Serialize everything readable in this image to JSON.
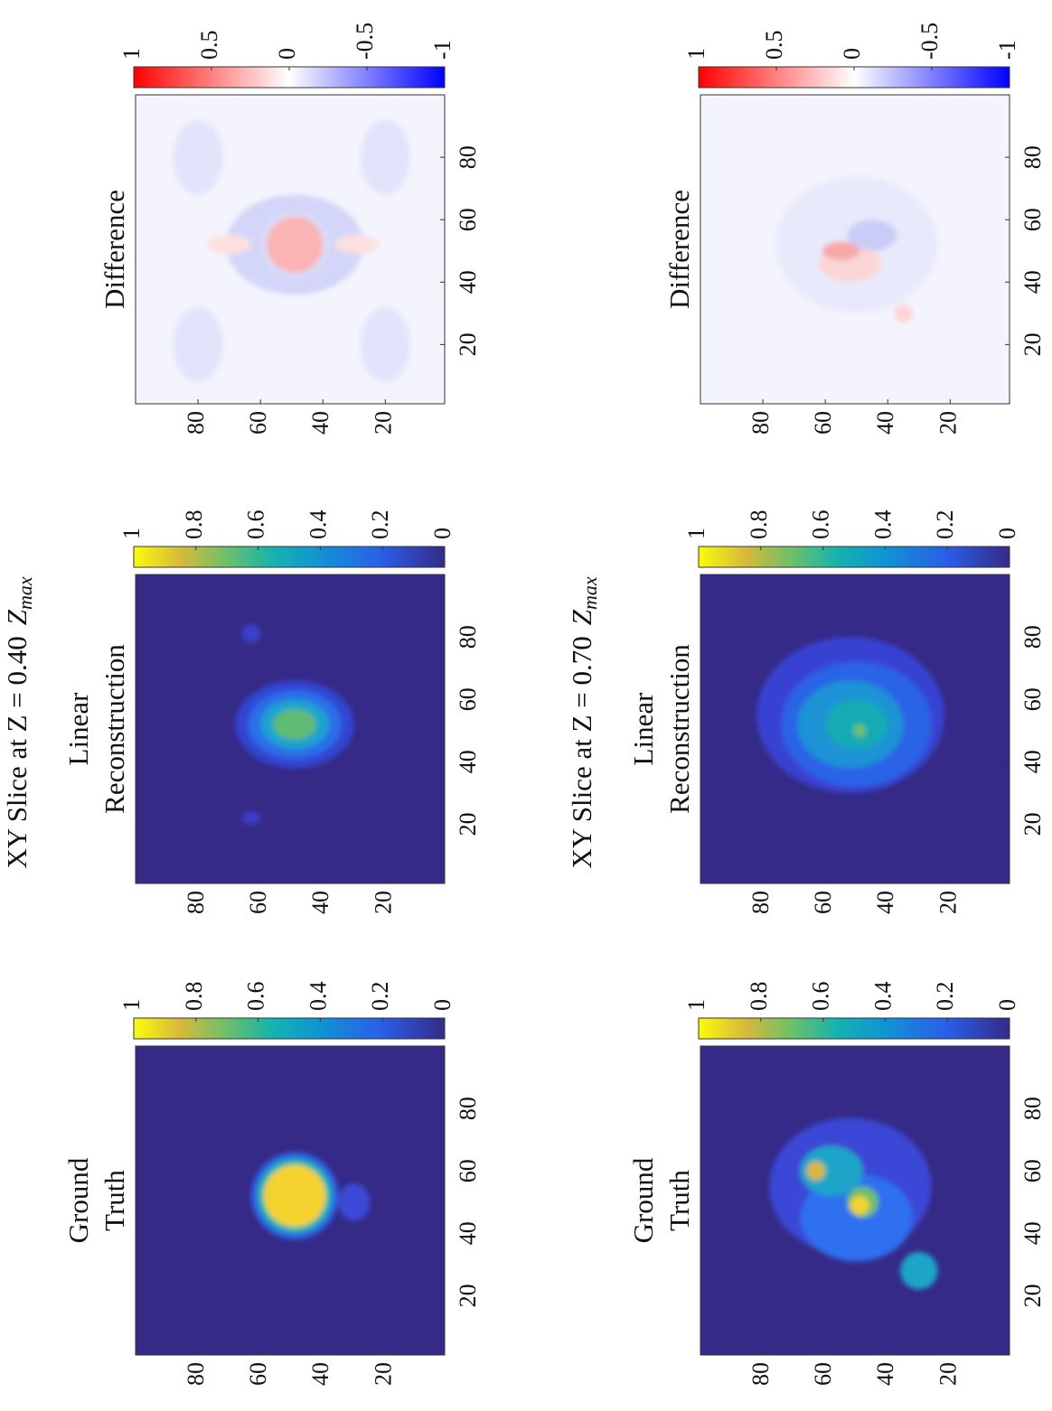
{
  "figure": {
    "rows": [
      {
        "title": "XY Slice at Z = 0.40",
        "symbol": "Z",
        "subscript": "max"
      },
      {
        "title": "XY Slice at Z = 0.70",
        "symbol": "Z",
        "subscript": "max"
      }
    ]
  },
  "chart_data": [
    {
      "type": "heatmap",
      "title": [
        "Ground",
        "Truth"
      ],
      "colormap": "parula",
      "xlim": [
        1,
        100
      ],
      "ylim": [
        1,
        100
      ],
      "xticks": [
        20,
        40,
        60,
        80
      ],
      "yticks": [
        20,
        40,
        60,
        80
      ],
      "clim": [
        0,
        1
      ],
      "cticks": [
        0,
        0.2,
        0.4,
        0.6,
        0.8,
        1
      ]
    },
    {
      "type": "heatmap",
      "title": [
        "Linear",
        "Reconstruction"
      ],
      "colormap": "parula",
      "xlim": [
        1,
        100
      ],
      "ylim": [
        1,
        100
      ],
      "xticks": [
        20,
        40,
        60,
        80
      ],
      "yticks": [
        20,
        40,
        60,
        80
      ],
      "clim": [
        0,
        1
      ],
      "cticks": [
        0,
        0.2,
        0.4,
        0.6,
        0.8,
        1
      ]
    },
    {
      "type": "heatmap",
      "title": [
        "Difference"
      ],
      "colormap": "redblue",
      "xlim": [
        1,
        100
      ],
      "ylim": [
        1,
        100
      ],
      "xticks": [
        20,
        40,
        60,
        80
      ],
      "yticks": [
        20,
        40,
        60,
        80
      ],
      "clim": [
        -1,
        1
      ],
      "cticks": [
        -1,
        -0.5,
        0,
        0.5,
        1
      ]
    },
    {
      "type": "heatmap",
      "title": [
        "Ground",
        "Truth"
      ],
      "colormap": "parula",
      "xlim": [
        1,
        100
      ],
      "ylim": [
        1,
        100
      ],
      "xticks": [
        20,
        40,
        60,
        80
      ],
      "yticks": [
        20,
        40,
        60,
        80
      ],
      "clim": [
        0,
        1
      ],
      "cticks": [
        0,
        0.2,
        0.4,
        0.6,
        0.8,
        1
      ]
    },
    {
      "type": "heatmap",
      "title": [
        "Linear",
        "Reconstruction"
      ],
      "colormap": "parula",
      "xlim": [
        1,
        100
      ],
      "ylim": [
        1,
        100
      ],
      "xticks": [
        20,
        40,
        60,
        80
      ],
      "yticks": [
        20,
        40,
        60,
        80
      ],
      "clim": [
        0,
        1
      ],
      "cticks": [
        0,
        0.2,
        0.4,
        0.6,
        0.8,
        1
      ]
    },
    {
      "type": "heatmap",
      "title": [
        "Difference"
      ],
      "colormap": "redblue",
      "xlim": [
        1,
        100
      ],
      "ylim": [
        1,
        100
      ],
      "xticks": [
        20,
        40,
        60,
        80
      ],
      "yticks": [
        20,
        40,
        60,
        80
      ],
      "clim": [
        -1,
        1
      ],
      "cticks": [
        -1,
        -0.5,
        0,
        0.5,
        1
      ]
    }
  ]
}
